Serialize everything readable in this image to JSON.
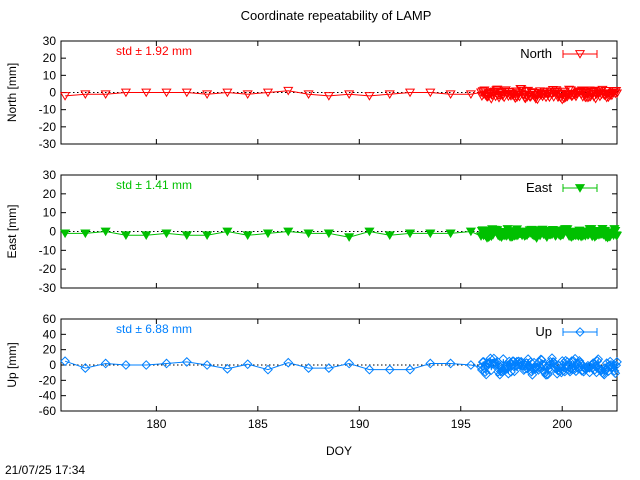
{
  "figure": {
    "title": "Coordinate repeatability of LAMP",
    "timestamp": "21/07/25 17:34"
  },
  "chart_data": [
    {
      "type": "line",
      "panel": "north",
      "ylabel": "North [mm]",
      "xlabel": "",
      "xlim": [
        175.3,
        202.7
      ],
      "ylim": [
        -30,
        30
      ],
      "yticks": [
        30,
        20,
        10,
        0,
        -10,
        -20,
        -30
      ],
      "xticks": [
        180,
        185,
        190,
        195,
        200
      ],
      "show_xtick_labels": false,
      "color": "#ff0000",
      "marker": "triangle-down-open",
      "legend": {
        "label": "North",
        "placement": "top-right"
      },
      "annotation": "std ± 1.92 mm",
      "reference_line": 0,
      "series": [
        {
          "name": "North",
          "x": [
            175.5,
            176.5,
            177.5,
            178.5,
            179.5,
            180.5,
            181.5,
            182.5,
            183.5,
            184.5,
            185.5,
            186.5,
            187.5,
            188.5,
            189.5,
            190.5,
            191.5,
            192.5,
            193.5,
            194.5,
            195.5
          ],
          "y": [
            -2,
            -1,
            -1,
            0,
            0,
            0,
            0,
            -1,
            0,
            -1,
            0,
            1,
            -1,
            -2,
            -1,
            -2,
            -1,
            0,
            0,
            -1,
            -1
          ]
        }
      ],
      "dense_segment": {
        "x_start": 196.0,
        "x_end": 202.7,
        "count": 160,
        "center": -1,
        "spread": 2.5
      }
    },
    {
      "type": "line",
      "panel": "east",
      "ylabel": "East [mm]",
      "xlabel": "",
      "xlim": [
        175.3,
        202.7
      ],
      "ylim": [
        -30,
        30
      ],
      "yticks": [
        30,
        20,
        10,
        0,
        -10,
        -20,
        -30
      ],
      "xticks": [
        180,
        185,
        190,
        195,
        200
      ],
      "show_xtick_labels": false,
      "color": "#00c000",
      "marker": "triangle-down-filled",
      "legend": {
        "label": "East",
        "placement": "top-right"
      },
      "annotation": "std ± 1.41 mm",
      "reference_line": 0,
      "series": [
        {
          "name": "East",
          "x": [
            175.5,
            176.5,
            177.5,
            178.5,
            179.5,
            180.5,
            181.5,
            182.5,
            183.5,
            184.5,
            185.5,
            186.5,
            187.5,
            188.5,
            189.5,
            190.5,
            191.5,
            192.5,
            193.5,
            194.5,
            195.5
          ],
          "y": [
            -1,
            -1,
            0,
            -2,
            -2,
            -1,
            -2,
            -2,
            0,
            -2,
            -1,
            0,
            -1,
            -1,
            -3,
            0,
            -2,
            -1,
            -1,
            -1,
            0
          ]
        }
      ],
      "dense_segment": {
        "x_start": 196.0,
        "x_end": 202.7,
        "count": 160,
        "center": -1,
        "spread": 2.0
      }
    },
    {
      "type": "line",
      "panel": "up",
      "ylabel": "Up [mm]",
      "xlabel": "DOY",
      "xlim": [
        175.3,
        202.7
      ],
      "ylim": [
        -60,
        60
      ],
      "yticks": [
        60,
        40,
        20,
        0,
        -20,
        -40,
        -60
      ],
      "xticks": [
        180,
        185,
        190,
        195,
        200
      ],
      "show_xtick_labels": true,
      "color": "#0080ff",
      "marker": "diamond-open",
      "legend": {
        "label": "Up",
        "placement": "top-right"
      },
      "annotation": "std ± 6.88 mm",
      "reference_line": 0,
      "series": [
        {
          "name": "Up",
          "x": [
            175.5,
            176.5,
            177.5,
            178.5,
            179.5,
            180.5,
            181.5,
            182.5,
            183.5,
            184.5,
            185.5,
            186.5,
            187.5,
            188.5,
            189.5,
            190.5,
            191.5,
            192.5,
            193.5,
            194.5,
            195.5
          ],
          "y": [
            5,
            -4,
            2,
            0,
            0,
            2,
            4,
            0,
            -5,
            1,
            -6,
            3,
            -4,
            -4,
            2,
            -6,
            -6,
            -6,
            2,
            2,
            0
          ]
        }
      ],
      "dense_segment": {
        "x_start": 196.0,
        "x_end": 202.7,
        "count": 160,
        "center": -2,
        "spread": 9
      }
    }
  ]
}
